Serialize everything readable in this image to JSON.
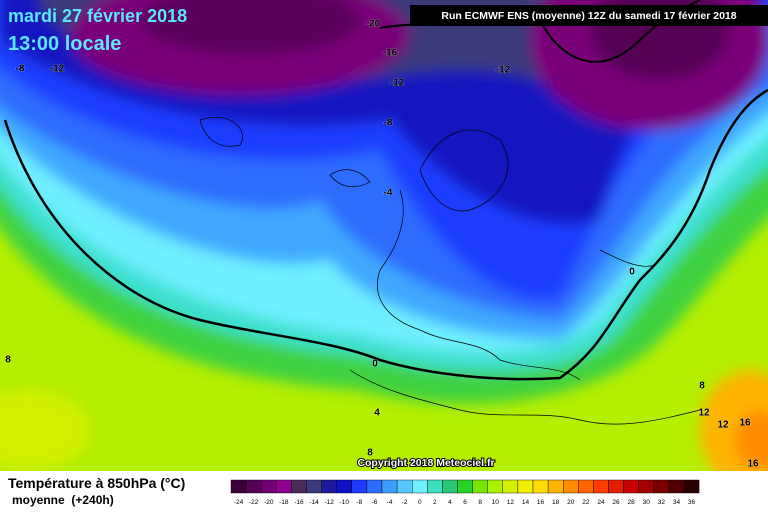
{
  "header": {
    "date": "mardi 27 février 2018",
    "time": "13:00 locale",
    "run": "Run ECMWF ENS (moyenne) 12Z du samedi 17 février 2018"
  },
  "map": {
    "contour_labels": [
      "-8",
      "-12",
      "-20",
      "-16",
      "-12",
      "-12",
      "-8",
      "-4",
      "0",
      "0",
      "4",
      "8",
      "8",
      "8",
      "12",
      "12",
      "16",
      "16"
    ],
    "copyright": "Copyright 2018 Meteociel.fr"
  },
  "legend": {
    "title": "Température à 850hPa (°C)",
    "subtitle": "moyenne  (+240h)",
    "labels": [
      -24,
      -22,
      -20,
      -18,
      -16,
      -14,
      -12,
      -10,
      -8,
      -6,
      -4,
      -2,
      0,
      2,
      4,
      6,
      8,
      10,
      12,
      14,
      16,
      18,
      20,
      22,
      24,
      26,
      28,
      30,
      32,
      34,
      36
    ],
    "colors": [
      "#3a003a",
      "#560056",
      "#720072",
      "#8e008e",
      "#4a2a5a",
      "#3a3a7a",
      "#1a1a9a",
      "#1010c8",
      "#1e3cff",
      "#2e6cff",
      "#3c9cff",
      "#56c8ff",
      "#6ef0ff",
      "#3ce0c0",
      "#28c878",
      "#28d228",
      "#78e600",
      "#aaf000",
      "#d2f000",
      "#f0f000",
      "#ffdc00",
      "#ffb400",
      "#ff8c00",
      "#ff6400",
      "#ff3c00",
      "#e61e00",
      "#c80000",
      "#a00000",
      "#780000",
      "#500000",
      "#280000"
    ]
  }
}
